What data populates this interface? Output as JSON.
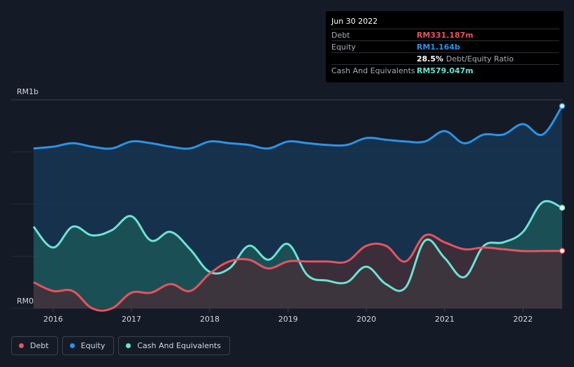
{
  "chart_data": {
    "type": "area",
    "title": "",
    "ylabel_top": "RM1b",
    "ylabel_bottom": "RM0",
    "ylim": [
      0,
      1.2
    ],
    "xlim": [
      2015.75,
      2022.5
    ],
    "x_ticks": [
      {
        "value": 2016,
        "label": "2016"
      },
      {
        "value": 2017,
        "label": "2017"
      },
      {
        "value": 2018,
        "label": "2018"
      },
      {
        "value": 2019,
        "label": "2019"
      },
      {
        "value": 2020,
        "label": "2020"
      },
      {
        "value": 2021,
        "label": "2021"
      },
      {
        "value": 2022,
        "label": "2022"
      }
    ],
    "series": [
      {
        "name": "Equity",
        "color": "#2c93e8",
        "fill": "#16395a",
        "points": [
          [
            2015.75,
            0.92
          ],
          [
            2016.0,
            0.93
          ],
          [
            2016.25,
            0.95
          ],
          [
            2016.5,
            0.93
          ],
          [
            2016.75,
            0.92
          ],
          [
            2017.0,
            0.96
          ],
          [
            2017.25,
            0.95
          ],
          [
            2017.5,
            0.93
          ],
          [
            2017.75,
            0.92
          ],
          [
            2018.0,
            0.96
          ],
          [
            2018.25,
            0.95
          ],
          [
            2018.5,
            0.94
          ],
          [
            2018.75,
            0.92
          ],
          [
            2019.0,
            0.96
          ],
          [
            2019.25,
            0.95
          ],
          [
            2019.5,
            0.94
          ],
          [
            2019.75,
            0.94
          ],
          [
            2020.0,
            0.98
          ],
          [
            2020.25,
            0.97
          ],
          [
            2020.5,
            0.96
          ],
          [
            2020.75,
            0.96
          ],
          [
            2021.0,
            1.02
          ],
          [
            2021.25,
            0.95
          ],
          [
            2021.5,
            1.0
          ],
          [
            2021.75,
            1.0
          ],
          [
            2022.0,
            1.06
          ],
          [
            2022.25,
            1.0
          ],
          [
            2022.5,
            1.164
          ]
        ]
      },
      {
        "name": "Cash And Equivalents",
        "color": "#6ee2d3",
        "fill": "#1e5a5a",
        "points": [
          [
            2015.75,
            0.47
          ],
          [
            2016.0,
            0.35
          ],
          [
            2016.25,
            0.47
          ],
          [
            2016.5,
            0.42
          ],
          [
            2016.75,
            0.45
          ],
          [
            2017.0,
            0.53
          ],
          [
            2017.25,
            0.39
          ],
          [
            2017.5,
            0.44
          ],
          [
            2017.75,
            0.34
          ],
          [
            2018.0,
            0.21
          ],
          [
            2018.25,
            0.23
          ],
          [
            2018.5,
            0.36
          ],
          [
            2018.75,
            0.28
          ],
          [
            2019.0,
            0.37
          ],
          [
            2019.25,
            0.19
          ],
          [
            2019.5,
            0.16
          ],
          [
            2019.75,
            0.15
          ],
          [
            2020.0,
            0.24
          ],
          [
            2020.25,
            0.14
          ],
          [
            2020.5,
            0.12
          ],
          [
            2020.75,
            0.39
          ],
          [
            2021.0,
            0.29
          ],
          [
            2021.25,
            0.18
          ],
          [
            2021.5,
            0.36
          ],
          [
            2021.75,
            0.38
          ],
          [
            2022.0,
            0.44
          ],
          [
            2022.25,
            0.61
          ],
          [
            2022.5,
            0.579
          ]
        ]
      },
      {
        "name": "Debt",
        "color": "#e8535f",
        "fill": "#4a2c36",
        "points": [
          [
            2015.75,
            0.15
          ],
          [
            2016.0,
            0.1
          ],
          [
            2016.25,
            0.1
          ],
          [
            2016.5,
            0.0
          ],
          [
            2016.75,
            0.0
          ],
          [
            2017.0,
            0.09
          ],
          [
            2017.25,
            0.09
          ],
          [
            2017.5,
            0.14
          ],
          [
            2017.75,
            0.1
          ],
          [
            2018.0,
            0.2
          ],
          [
            2018.25,
            0.27
          ],
          [
            2018.5,
            0.28
          ],
          [
            2018.75,
            0.23
          ],
          [
            2019.0,
            0.27
          ],
          [
            2019.25,
            0.27
          ],
          [
            2019.5,
            0.27
          ],
          [
            2019.75,
            0.27
          ],
          [
            2020.0,
            0.36
          ],
          [
            2020.25,
            0.36
          ],
          [
            2020.5,
            0.27
          ],
          [
            2020.75,
            0.42
          ],
          [
            2021.0,
            0.38
          ],
          [
            2021.25,
            0.34
          ],
          [
            2021.5,
            0.35
          ],
          [
            2021.75,
            0.34
          ],
          [
            2022.0,
            0.33
          ],
          [
            2022.25,
            0.33
          ],
          [
            2022.5,
            0.331
          ]
        ]
      }
    ]
  },
  "tooltip": {
    "date": "Jun 30 2022",
    "rows": [
      {
        "label": "Debt",
        "value": "RM331.187m",
        "color": "#e8535f"
      },
      {
        "label": "Equity",
        "value": "RM1.164b",
        "color": "#2c93e8"
      },
      {
        "label": "",
        "value": "28.5%",
        "sub": "Debt/Equity Ratio",
        "color": "#ffffff"
      },
      {
        "label": "Cash And Equivalents",
        "value": "RM579.047m",
        "color": "#6ee2d3"
      }
    ]
  },
  "legend": [
    {
      "label": "Debt",
      "color": "#e8535f"
    },
    {
      "label": "Equity",
      "color": "#2c93e8"
    },
    {
      "label": "Cash And Equivalents",
      "color": "#6ee2d3"
    }
  ]
}
